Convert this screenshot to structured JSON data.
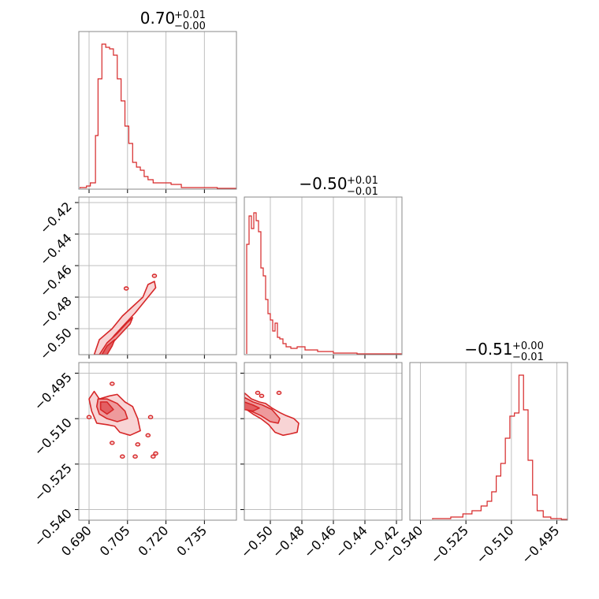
{
  "chart_data": {
    "type": "corner",
    "color": "#d62728",
    "params": [
      {
        "title": "0.70",
        "title_sup": "+0.01",
        "title_sub": "−0.00",
        "range": [
          0.686,
          0.7475
        ],
        "ticks": [
          0.69,
          0.705,
          0.72,
          0.735
        ],
        "tick_labels": [
          "0.690",
          "0.705",
          "0.720",
          "0.735"
        ],
        "hist": [
          {
            "x": 0.6865,
            "y": 0.01
          },
          {
            "x": 0.689,
            "y": 0.02
          },
          {
            "x": 0.6905,
            "y": 0.04
          },
          {
            "x": 0.6925,
            "y": 0.34
          },
          {
            "x": 0.6935,
            "y": 0.7
          },
          {
            "x": 0.695,
            "y": 0.92
          },
          {
            "x": 0.6965,
            "y": 0.9
          },
          {
            "x": 0.698,
            "y": 0.89
          },
          {
            "x": 0.6995,
            "y": 0.85
          },
          {
            "x": 0.701,
            "y": 0.7
          },
          {
            "x": 0.7025,
            "y": 0.56
          },
          {
            "x": 0.704,
            "y": 0.4
          },
          {
            "x": 0.7055,
            "y": 0.29
          },
          {
            "x": 0.707,
            "y": 0.17
          },
          {
            "x": 0.7085,
            "y": 0.14
          },
          {
            "x": 0.71,
            "y": 0.12
          },
          {
            "x": 0.7115,
            "y": 0.08
          },
          {
            "x": 0.713,
            "y": 0.06
          },
          {
            "x": 0.715,
            "y": 0.04
          },
          {
            "x": 0.718,
            "y": 0.04
          },
          {
            "x": 0.722,
            "y": 0.03
          },
          {
            "x": 0.726,
            "y": 0.01
          },
          {
            "x": 0.732,
            "y": 0.01
          },
          {
            "x": 0.74,
            "y": 0.005
          }
        ]
      },
      {
        "title": "−0.50",
        "title_sup": "+0.01",
        "title_sub": "−0.01",
        "range": [
          -0.5165,
          -0.4165
        ],
        "ticks": [
          -0.5,
          -0.48,
          -0.46,
          -0.44,
          -0.42
        ],
        "tick_labels": [
          "−0.50",
          "−0.48",
          "−0.46",
          "−0.44",
          "−0.42"
        ],
        "hist": [
          {
            "x": -0.515,
            "y": 0.7
          },
          {
            "x": -0.5135,
            "y": 0.88
          },
          {
            "x": -0.512,
            "y": 0.8
          },
          {
            "x": -0.5105,
            "y": 0.9
          },
          {
            "x": -0.509,
            "y": 0.85
          },
          {
            "x": -0.5075,
            "y": 0.78
          },
          {
            "x": -0.506,
            "y": 0.55
          },
          {
            "x": -0.5045,
            "y": 0.5
          },
          {
            "x": -0.503,
            "y": 0.35
          },
          {
            "x": -0.5015,
            "y": 0.26
          },
          {
            "x": -0.5,
            "y": 0.22
          },
          {
            "x": -0.4985,
            "y": 0.15
          },
          {
            "x": -0.497,
            "y": 0.2
          },
          {
            "x": -0.4955,
            "y": 0.11
          },
          {
            "x": -0.494,
            "y": 0.1
          },
          {
            "x": -0.492,
            "y": 0.07
          },
          {
            "x": -0.49,
            "y": 0.05
          },
          {
            "x": -0.487,
            "y": 0.04
          },
          {
            "x": -0.483,
            "y": 0.05
          },
          {
            "x": -0.478,
            "y": 0.03
          },
          {
            "x": -0.47,
            "y": 0.02
          },
          {
            "x": -0.46,
            "y": 0.01
          },
          {
            "x": -0.445,
            "y": 0.005
          }
        ]
      },
      {
        "title": "−0.51",
        "title_sup": "+0.00",
        "title_sub": "−0.01",
        "range": [
          -0.5435,
          -0.4915
        ],
        "ticks": [
          -0.54,
          -0.525,
          -0.51,
          -0.495
        ],
        "tick_labels": [
          "−0.540",
          "−0.525",
          "−0.510",
          "−0.495"
        ],
        "hist": [
          {
            "x": -0.536,
            "y": 0.01
          },
          {
            "x": -0.53,
            "y": 0.02
          },
          {
            "x": -0.526,
            "y": 0.04
          },
          {
            "x": -0.523,
            "y": 0.06
          },
          {
            "x": -0.52,
            "y": 0.09
          },
          {
            "x": -0.518,
            "y": 0.12
          },
          {
            "x": -0.5165,
            "y": 0.18
          },
          {
            "x": -0.515,
            "y": 0.28
          },
          {
            "x": -0.5135,
            "y": 0.36
          },
          {
            "x": -0.512,
            "y": 0.52
          },
          {
            "x": -0.5105,
            "y": 0.66
          },
          {
            "x": -0.509,
            "y": 0.68
          },
          {
            "x": -0.5075,
            "y": 0.92
          },
          {
            "x": -0.506,
            "y": 0.7
          },
          {
            "x": -0.5045,
            "y": 0.38
          },
          {
            "x": -0.503,
            "y": 0.16
          },
          {
            "x": -0.5015,
            "y": 0.06
          },
          {
            "x": -0.4995,
            "y": 0.02
          },
          {
            "x": -0.497,
            "y": 0.01
          },
          {
            "x": -0.4935,
            "y": 0.005
          }
        ]
      }
    ],
    "pairs": [
      {
        "xi": 0,
        "yi": 1,
        "contours": [
          [
            [
              0.692,
              -0.5165
            ],
            [
              0.694,
              -0.507
            ],
            [
              0.699,
              -0.5
            ],
            [
              0.703,
              -0.492
            ],
            [
              0.707,
              -0.486
            ],
            [
              0.711,
              -0.48
            ],
            [
              0.713,
              -0.472
            ],
            [
              0.7155,
              -0.47
            ],
            [
              0.716,
              -0.474
            ],
            [
              0.712,
              -0.482
            ],
            [
              0.708,
              -0.49
            ],
            [
              0.704,
              -0.497
            ],
            [
              0.7,
              -0.504
            ],
            [
              0.697,
              -0.51
            ],
            [
              0.695,
              -0.5165
            ]
          ],
          [
            [
              0.694,
              -0.5165
            ],
            [
              0.697,
              -0.509
            ],
            [
              0.701,
              -0.503
            ],
            [
              0.705,
              -0.496
            ],
            [
              0.707,
              -0.493
            ],
            [
              0.706,
              -0.497
            ],
            [
              0.702,
              -0.504
            ],
            [
              0.698,
              -0.511
            ],
            [
              0.697,
              -0.5165
            ]
          ],
          [
            [
              0.695,
              -0.5165
            ],
            [
              0.697,
              -0.511
            ],
            [
              0.7,
              -0.507
            ],
            [
              0.699,
              -0.511
            ],
            [
              0.697,
              -0.5165
            ]
          ]
        ],
        "islands": [
          [
            0.7045,
            -0.4745
          ],
          [
            0.7155,
            -0.4665
          ]
        ]
      },
      {
        "xi": 0,
        "yi": 2,
        "contours": [
          [
            [
              0.692,
              -0.501
            ],
            [
              0.694,
              -0.5035
            ],
            [
              0.698,
              -0.5025
            ],
            [
              0.701,
              -0.502
            ],
            [
              0.704,
              -0.5045
            ],
            [
              0.707,
              -0.506
            ],
            [
              0.709,
              -0.51
            ],
            [
              0.71,
              -0.514
            ],
            [
              0.706,
              -0.5155
            ],
            [
              0.702,
              -0.5145
            ],
            [
              0.7,
              -0.5125
            ],
            [
              0.697,
              -0.512
            ],
            [
              0.693,
              -0.5115
            ],
            [
              0.691,
              -0.5075
            ],
            [
              0.69,
              -0.5035
            ]
          ],
          [
            [
              0.6935,
              -0.5035
            ],
            [
              0.697,
              -0.5035
            ],
            [
              0.701,
              -0.505
            ],
            [
              0.704,
              -0.5075
            ],
            [
              0.705,
              -0.51
            ],
            [
              0.701,
              -0.511
            ],
            [
              0.697,
              -0.51
            ],
            [
              0.694,
              -0.5085
            ],
            [
              0.693,
              -0.506
            ]
          ],
          [
            [
              0.6945,
              -0.5045
            ],
            [
              0.697,
              -0.5045
            ],
            [
              0.6995,
              -0.507
            ],
            [
              0.697,
              -0.5085
            ],
            [
              0.6945,
              -0.507
            ]
          ]
        ],
        "islands": [
          [
            0.699,
            -0.4985
          ],
          [
            0.69,
            -0.5095
          ],
          [
            0.714,
            -0.5095
          ],
          [
            0.713,
            -0.5155
          ],
          [
            0.699,
            -0.518
          ],
          [
            0.709,
            -0.5185
          ],
          [
            0.716,
            -0.5215
          ],
          [
            0.715,
            -0.5225
          ],
          [
            0.703,
            -0.5225
          ],
          [
            0.708,
            -0.5225
          ]
        ]
      },
      {
        "xi": 1,
        "yi": 2,
        "contours": [
          [
            [
              -0.5165,
              -0.5015
            ],
            [
              -0.512,
              -0.5035
            ],
            [
              -0.507,
              -0.5045
            ],
            [
              -0.503,
              -0.505
            ],
            [
              -0.499,
              -0.5065
            ],
            [
              -0.494,
              -0.508
            ],
            [
              -0.49,
              -0.509
            ],
            [
              -0.485,
              -0.51
            ],
            [
              -0.482,
              -0.5115
            ],
            [
              -0.483,
              -0.5145
            ],
            [
              -0.487,
              -0.515
            ],
            [
              -0.492,
              -0.5155
            ],
            [
              -0.497,
              -0.5145
            ],
            [
              -0.501,
              -0.512
            ],
            [
              -0.506,
              -0.51
            ],
            [
              -0.511,
              -0.5085
            ],
            [
              -0.5165,
              -0.5065
            ]
          ],
          [
            [
              -0.5165,
              -0.503
            ],
            [
              -0.511,
              -0.5045
            ],
            [
              -0.505,
              -0.5055
            ],
            [
              -0.499,
              -0.507
            ],
            [
              -0.494,
              -0.51
            ],
            [
              -0.495,
              -0.5115
            ],
            [
              -0.5,
              -0.511
            ],
            [
              -0.506,
              -0.509
            ],
            [
              -0.5165,
              -0.5065
            ]
          ],
          [
            [
              -0.5165,
              -0.5045
            ],
            [
              -0.511,
              -0.5055
            ],
            [
              -0.507,
              -0.5065
            ],
            [
              -0.511,
              -0.5075
            ],
            [
              -0.5165,
              -0.507
            ]
          ]
        ],
        "islands": [
          [
            -0.508,
            -0.5015
          ],
          [
            -0.5055,
            -0.5025
          ],
          [
            -0.4945,
            -0.5015
          ]
        ]
      }
    ]
  }
}
